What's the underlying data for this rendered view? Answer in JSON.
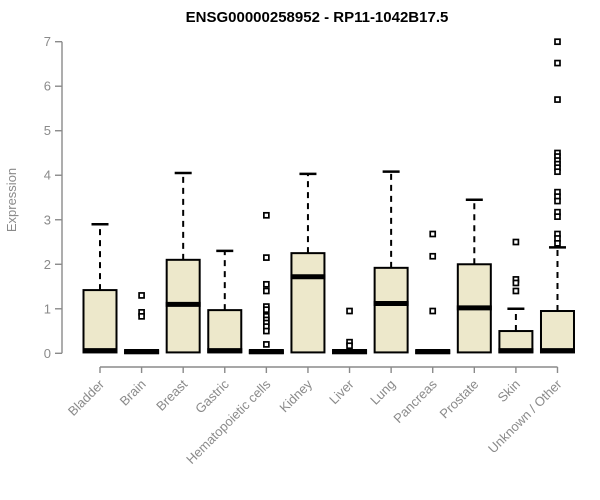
{
  "chart_data": {
    "type": "boxplot",
    "title": "ENSG00000258952 - RP11-1042B17.5",
    "ylabel": "Expression",
    "xlabel": "",
    "ylim": [
      0,
      7
    ],
    "yticks": [
      0,
      1,
      2,
      3,
      4,
      5,
      6,
      7
    ],
    "grid": false,
    "legend": "none",
    "categories": [
      "Bladder",
      "Brain",
      "Breast",
      "Gastric",
      "Hematopoietic cells",
      "Kidney",
      "Liver",
      "Lung",
      "Pancreas",
      "Prostate",
      "Skin",
      "Unknown / Other"
    ],
    "boxes": [
      {
        "category": "Bladder",
        "low": 0,
        "q1": 0.02,
        "median": 0.06,
        "q3": 1.42,
        "high": 2.9,
        "outliers": []
      },
      {
        "category": "Brain",
        "low": 0,
        "q1": 0.0,
        "median": 0.04,
        "q3": 0.05,
        "high": 0.05,
        "outliers": [
          1.3,
          0.92,
          0.83
        ]
      },
      {
        "category": "Breast",
        "low": 0,
        "q1": 0.02,
        "median": 1.1,
        "q3": 2.1,
        "high": 4.05,
        "outliers": []
      },
      {
        "category": "Gastric",
        "low": 0,
        "q1": 0.02,
        "median": 0.06,
        "q3": 0.97,
        "high": 2.3,
        "outliers": []
      },
      {
        "category": "Hematopoietic cells",
        "low": 0,
        "q1": 0.0,
        "median": 0.04,
        "q3": 0.05,
        "high": 0.05,
        "outliers": [
          3.1,
          2.15,
          1.55,
          1.4,
          1.05,
          0.98,
          0.83,
          0.75,
          0.68,
          0.6,
          0.5,
          0.2
        ]
      },
      {
        "category": "Kidney",
        "low": 0,
        "q1": 0.02,
        "median": 1.72,
        "q3": 2.25,
        "high": 4.03,
        "outliers": []
      },
      {
        "category": "Liver",
        "low": 0,
        "q1": 0.0,
        "median": 0.04,
        "q3": 0.05,
        "high": 0.05,
        "outliers": [
          0.95,
          0.25,
          0.17
        ]
      },
      {
        "category": "Lung",
        "low": 0,
        "q1": 0.02,
        "median": 1.12,
        "q3": 1.92,
        "high": 4.08,
        "outliers": []
      },
      {
        "category": "Pancreas",
        "low": 0,
        "q1": 0.0,
        "median": 0.04,
        "q3": 0.05,
        "high": 0.05,
        "outliers": [
          2.68,
          2.18,
          0.95
        ]
      },
      {
        "category": "Prostate",
        "low": 0,
        "q1": 0.02,
        "median": 1.02,
        "q3": 2.0,
        "high": 3.45,
        "outliers": []
      },
      {
        "category": "Skin",
        "low": 0,
        "q1": 0.02,
        "median": 0.06,
        "q3": 0.5,
        "high": 1.0,
        "outliers": [
          2.5,
          1.66,
          1.58,
          1.4
        ]
      },
      {
        "category": "Unknown / Other",
        "low": 0,
        "q1": 0.02,
        "median": 0.06,
        "q3": 0.95,
        "high": 2.38,
        "outliers": [
          7.0,
          6.52,
          5.7,
          4.5,
          4.42,
          4.33,
          4.25,
          4.17,
          4.08,
          3.62,
          3.52,
          3.42,
          3.17,
          3.07,
          2.68,
          2.58,
          2.47
        ]
      }
    ],
    "colors": {
      "box_fill": "#EDE8CB",
      "box_stroke": "#000000",
      "median": "#000000",
      "whisker": "#000000",
      "outlier_stroke": "#000000",
      "outlier_fill": "#ffffff",
      "axis": "#8a8a8a",
      "tick_text": "#8a8a8a",
      "title_text": "#000000"
    }
  }
}
